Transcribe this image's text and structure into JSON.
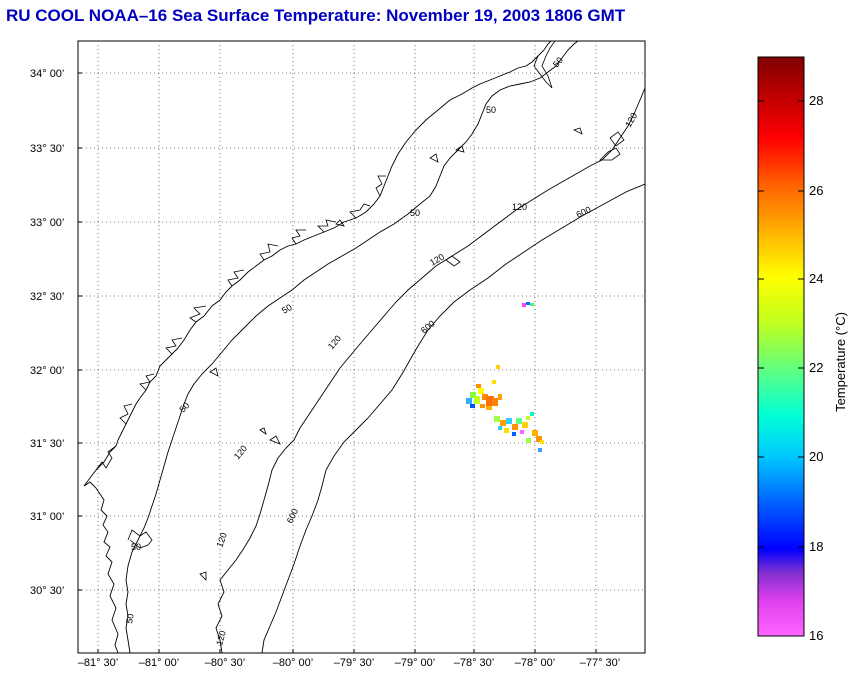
{
  "title": "RU COOL  NOAA–16  Sea Surface Temperature:  November 19, 2003 1806 GMT",
  "map": {
    "lat_ticks": [
      "34° 00’",
      "33° 30’",
      "33° 00’",
      "32° 30’",
      "32° 00’",
      "31° 30’",
      "31° 00’",
      "30° 30’"
    ],
    "lon_ticks": [
      "–81° 30’",
      "–81° 00’",
      "–80° 30’",
      "–80° 00’",
      "–79° 30’",
      "–79° 00’",
      "–78° 30’",
      "–78° 00’",
      "–77° 30’"
    ],
    "isobath_labels": [
      "50",
      "120",
      "600"
    ]
  },
  "colorbar": {
    "label": "Temperature (°C)",
    "ticks": [
      "28",
      "26",
      "24",
      "22",
      "20",
      "18",
      "16"
    ],
    "range": [
      16,
      29
    ]
  },
  "colors": {
    "title": "#0000c0",
    "coast": "#000000",
    "grid": "#555555"
  }
}
